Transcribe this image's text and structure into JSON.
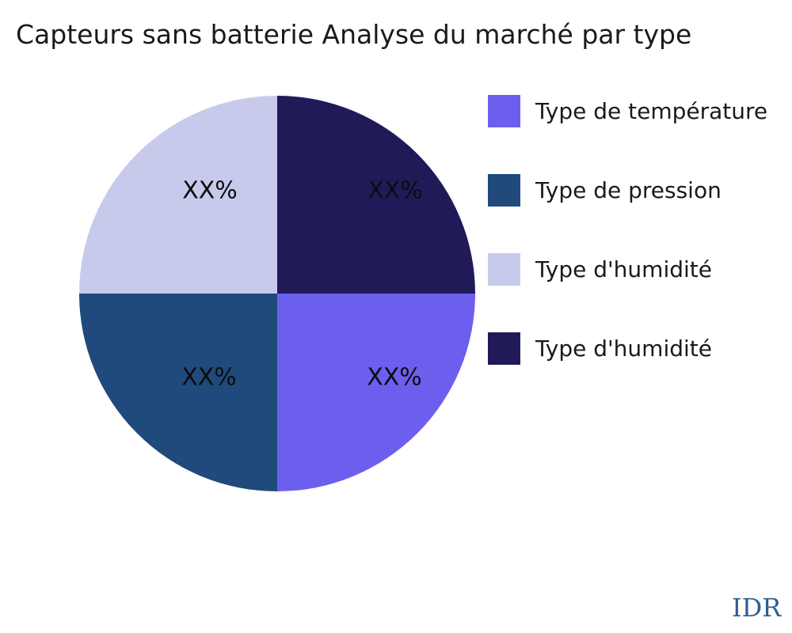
{
  "title": "Capteurs sans batterie Analyse du marché par type",
  "watermark": "IDR",
  "colors": {
    "background": "#ffffff",
    "title_text": "#1a1a1a",
    "slice_label_text": "#0d0d0d",
    "watermark_text": "#2d5f8e"
  },
  "chart_data": {
    "type": "pie",
    "title": "Capteurs sans batterie Analyse du marché par type",
    "start_angle_deg": 90,
    "direction": "clockwise",
    "legend_position": "right",
    "series": [
      {
        "name": "Type de température",
        "value": 25,
        "label": "XX%",
        "color": "#6d5fee"
      },
      {
        "name": "Type de pression",
        "value": 25,
        "label": "XX%",
        "color": "#204a7b"
      },
      {
        "name": "Type d'humidité",
        "value": 25,
        "label": "XX%",
        "color": "#c8caec"
      },
      {
        "name": "Type d'humidité",
        "value": 25,
        "label": "XX%",
        "color": "#211a59"
      }
    ]
  }
}
